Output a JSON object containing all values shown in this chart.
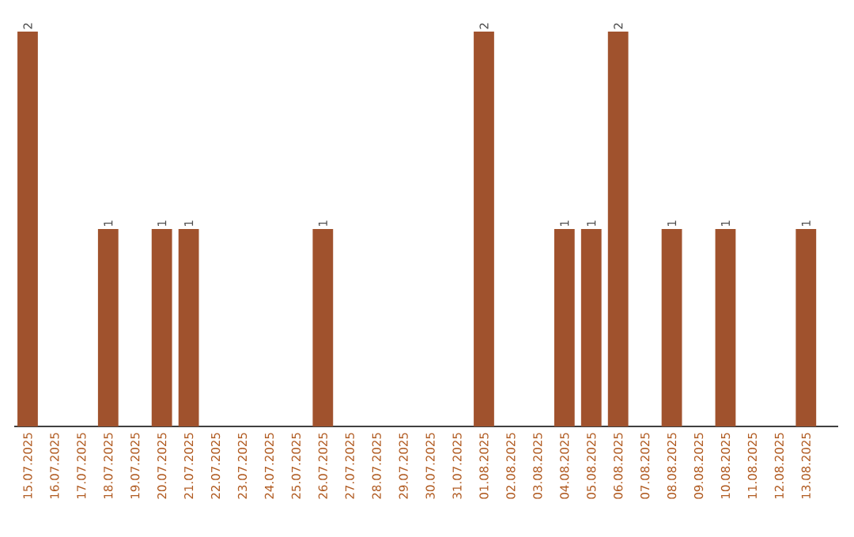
{
  "chart_data": {
    "type": "bar",
    "tick_labels": "x",
    "color": "#a0522d",
    "categories": [
      "15.07.2025",
      "16.07.2025",
      "17.07.2025",
      "18.07.2025",
      "19.07.2025",
      "20.07.2025",
      "21.07.2025",
      "22.07.2025",
      "23.07.2025",
      "24.07.2025",
      "25.07.2025",
      "26.07.2025",
      "27.07.2025",
      "28.07.2025",
      "29.07.2025",
      "30.07.2025",
      "31.07.2025",
      "01.08.2025",
      "02.08.2025",
      "03.08.2025",
      "04.08.2025",
      "05.08.2025",
      "06.08.2025",
      "07.08.2025",
      "08.08.2025",
      "09.08.2025",
      "10.08.2025",
      "11.08.2025",
      "12.08.2025",
      "13.08.2025"
    ],
    "values": [
      2,
      0,
      0,
      1,
      0,
      1,
      1,
      0,
      0,
      0,
      0,
      1,
      0,
      0,
      0,
      0,
      0,
      2,
      0,
      0,
      1,
      1,
      2,
      0,
      1,
      0,
      1,
      0,
      0,
      1
    ],
    "value_labels": [
      "2",
      null,
      null,
      "1",
      null,
      "1",
      "1",
      null,
      null,
      null,
      null,
      "1",
      null,
      null,
      null,
      null,
      null,
      "2",
      null,
      null,
      "1",
      "1",
      "2",
      null,
      "1",
      null,
      "1",
      null,
      null,
      "1"
    ]
  }
}
